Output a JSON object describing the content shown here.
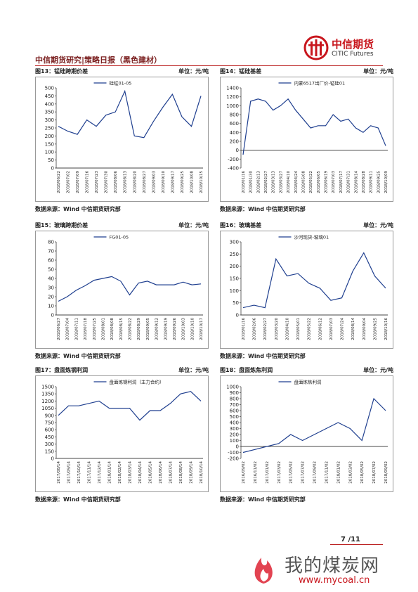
{
  "header": {
    "title": "中信期货研究|策略日报（黑色建材）",
    "logo_cn": "中信期货",
    "logo_en": "CITIC Futures"
  },
  "chart_data": [
    {
      "type": "line",
      "title": "图13：锰硅跨期价差",
      "unit": "单位：元/吨",
      "source": "数据来源：Wind  中信期货研究部",
      "categories": [
        "2018/06/22",
        "2018/07/02",
        "2018/07/09",
        "2018/07/16",
        "2018/07/23",
        "2018/07/30",
        "2018/08/06",
        "2018/08/13",
        "2018/08/20",
        "2018/08/27",
        "2018/09/03",
        "2018/09/10",
        "2018/09/17",
        "2018/09/25",
        "2018/10/08",
        "2018/10/15"
      ],
      "series": [
        {
          "name": "硅锰01-05",
          "color": "#1f3f8f",
          "values": [
            260,
            230,
            210,
            300,
            260,
            330,
            350,
            480,
            200,
            190,
            290,
            380,
            460,
            320,
            260,
            450
          ]
        }
      ],
      "ylim": [
        0,
        500
      ],
      "yticks": [
        0,
        50,
        100,
        150,
        200,
        250,
        300,
        350,
        400,
        450,
        500
      ]
    },
    {
      "type": "line",
      "title": "图14：锰硅基差",
      "unit": "单位：元/吨",
      "source": "数据来源：Wind  中信期货研究部",
      "categories": [
        "2018/01/16",
        "2018/01/30",
        "2018/02/13",
        "2018/02/27",
        "2018/03/13",
        "2018/03/27",
        "2018/04/10",
        "2018/04/24",
        "2018/05/08",
        "2018/05/22",
        "2018/06/05",
        "2018/06/19",
        "2018/07/03",
        "2018/07/17",
        "2018/07/31",
        "2018/08/14",
        "2018/08/28",
        "2018/09/11",
        "2018/09/25",
        "2018/10/09"
      ],
      "series": [
        {
          "name": "内蒙6517出厂价-锰硅01",
          "color": "#1f3f8f",
          "values": [
            -100,
            1100,
            1150,
            1100,
            900,
            1000,
            1150,
            900,
            700,
            500,
            550,
            550,
            800,
            650,
            700,
            500,
            400,
            550,
            500,
            100
          ]
        }
      ],
      "ylim": [
        -400,
        1400
      ],
      "yticks": [
        -400,
        -200,
        0,
        200,
        400,
        600,
        800,
        1000,
        1200,
        1400
      ]
    },
    {
      "type": "line",
      "title": "图15：玻璃跨期价差",
      "unit": "单位：元/吨",
      "source": "数据来源：Wind  中信期货研究部",
      "categories": [
        "2018/06/27",
        "2018/07/04",
        "2018/07/11",
        "2018/07/18",
        "2018/07/25",
        "2018/08/01",
        "2018/08/08",
        "2018/08/15",
        "2018/08/22",
        "2018/08/29",
        "2018/09/05",
        "2018/09/12",
        "2018/09/19",
        "2018/09/26",
        "2018/10/03",
        "2018/10/10",
        "2018/10/17"
      ],
      "series": [
        {
          "name": "FG01-05",
          "color": "#1f3f8f",
          "values": [
            15,
            20,
            27,
            32,
            38,
            40,
            42,
            37,
            22,
            35,
            37,
            33,
            33,
            33,
            36,
            33,
            34
          ]
        }
      ],
      "ylim": [
        0,
        80
      ],
      "yticks": [
        0,
        10,
        20,
        30,
        40,
        50,
        60,
        70,
        80
      ]
    },
    {
      "type": "line",
      "title": "图16：玻璃基差",
      "unit": "单位：元/吨",
      "source": "数据来源：Wind  中信期货研究部",
      "categories": [
        "2018/01/16",
        "2018/02/06",
        "2018/02/27",
        "2018/03/20",
        "2018/04/10",
        "2018/05/01",
        "2018/05/22",
        "2018/06/12",
        "2018/07/03",
        "2018/07/24",
        "2018/08/14",
        "2018/09/04",
        "2018/09/25",
        "2018/10/16"
      ],
      "series": [
        {
          "name": "沙河现货-玻璃01",
          "color": "#1f3f8f",
          "values": [
            30,
            40,
            30,
            230,
            160,
            170,
            130,
            110,
            60,
            70,
            180,
            255,
            160,
            110
          ]
        }
      ],
      "ylim": [
        0,
        300
      ],
      "yticks": [
        0,
        50,
        100,
        150,
        200,
        250,
        300
      ]
    },
    {
      "type": "line",
      "title": "图17：盘面炼钢利润",
      "unit": "单位：元/吨",
      "source": "数据来源：Wind  中信期货研究部",
      "categories": [
        "2017/08/14",
        "2017/09/14",
        "2017/10/14",
        "2017/11/14",
        "2017/12/14",
        "2018/01/14",
        "2018/02/14",
        "2018/03/14",
        "2018/04/14",
        "2018/05/14",
        "2018/06/14",
        "2018/07/14",
        "2018/08/14",
        "2018/09/14",
        "2018/10/14"
      ],
      "series": [
        {
          "name": "盘面炼钢利润（主力合约）",
          "color": "#1f3f8f",
          "values": [
            900,
            1100,
            1100,
            1150,
            1200,
            1050,
            1050,
            1050,
            800,
            1000,
            1000,
            1150,
            1350,
            1400,
            1200
          ]
        }
      ],
      "ylim": [
        0,
        1500
      ],
      "yticks": [
        0,
        150,
        300,
        450,
        600,
        750,
        900,
        1050,
        1200,
        1350,
        1500
      ]
    },
    {
      "type": "line",
      "title": "图18：盘面炼焦利润",
      "unit": "单位：元/吨",
      "source": "数据来源：Wind  中信期货研究部",
      "categories": [
        "2016/09/02",
        "2016/11/02",
        "2017/01/02",
        "2017/03/02",
        "2017/05/02",
        "2017/07/02",
        "2017/09/02",
        "2017/11/02",
        "2018/01/02",
        "2018/03/02",
        "2018/05/02",
        "2018/07/02",
        "2018/09/02"
      ],
      "series": [
        {
          "name": "盘面炼焦利润",
          "color": "#1f3f8f",
          "values": [
            -100,
            -50,
            0,
            50,
            200,
            100,
            200,
            300,
            400,
            300,
            100,
            800,
            600
          ]
        }
      ],
      "ylim": [
        -200,
        1000
      ],
      "yticks": [
        -200,
        -100,
        0,
        100,
        200,
        300,
        400,
        500,
        600,
        700,
        800,
        900,
        1000
      ]
    }
  ],
  "footer": {
    "page_number": "7 /11"
  },
  "watermark": {
    "site": "我的煤炭网",
    "url": "www.mycoal.cn"
  }
}
